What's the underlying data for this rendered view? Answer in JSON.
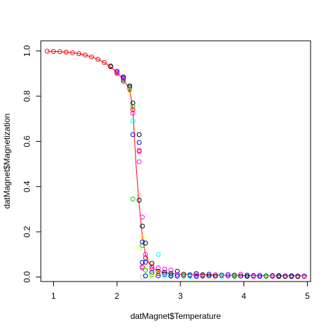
{
  "chart_data": {
    "type": "scatter",
    "xlabel": "datMagnet$Temperature",
    "ylabel": "datMagnet$Magnetization",
    "xlim": [
      0.8,
      5.05
    ],
    "ylim": [
      -0.02,
      1.045
    ],
    "x_ticks": [
      "1",
      "2",
      "3",
      "4",
      "5"
    ],
    "y_ticks": [
      "0.0",
      "0.2",
      "0.4",
      "0.6",
      "0.8",
      "1.0"
    ],
    "grid": false,
    "legend": "none",
    "colors": [
      "#000000",
      "#ff0000",
      "#00cd00",
      "#0000ff",
      "#00ffff",
      "#ff00ff",
      "#ffff00",
      "#bebebe"
    ],
    "curve_color": "#ff0000",
    "temperature": [
      0.9,
      1.0,
      1.1,
      1.2,
      1.3,
      1.4,
      1.5,
      1.6,
      1.7,
      1.8,
      1.9,
      2.0,
      2.1,
      2.2,
      2.25,
      2.3,
      2.35,
      2.4,
      2.45,
      2.5,
      2.55,
      2.6,
      2.65,
      2.7,
      2.75,
      2.8,
      2.9,
      3.0,
      3.1,
      3.2,
      3.3,
      3.4,
      3.5,
      3.6,
      3.7,
      3.8,
      3.9,
      4.0,
      4.1,
      4.2,
      4.3,
      4.4,
      4.5,
      4.6,
      4.7,
      4.8,
      4.9,
      5.0
    ],
    "mean_magnetization": [
      0.999,
      0.998,
      0.997,
      0.995,
      0.992,
      0.988,
      0.982,
      0.974,
      0.963,
      0.949,
      0.93,
      0.905,
      0.875,
      0.83,
      0.74,
      0.5,
      0.32,
      0.18,
      0.1,
      0.065,
      0.045,
      0.034,
      0.027,
      0.022,
      0.019,
      0.017,
      0.014,
      0.012,
      0.011,
      0.01,
      0.009,
      0.009,
      0.008,
      0.008,
      0.007,
      0.007,
      0.007,
      0.006,
      0.006,
      0.006,
      0.006,
      0.005,
      0.005,
      0.005,
      0.005,
      0.005,
      0.005,
      0.005
    ],
    "points": [
      [
        0.9,
        0.999,
        1
      ],
      [
        1.0,
        0.998,
        1
      ],
      [
        1.1,
        0.997,
        1
      ],
      [
        1.2,
        0.995,
        1
      ],
      [
        1.3,
        0.992,
        1
      ],
      [
        1.4,
        0.988,
        1
      ],
      [
        1.5,
        0.982,
        1
      ],
      [
        1.6,
        0.974,
        1
      ],
      [
        1.7,
        0.963,
        1
      ],
      [
        1.8,
        0.949,
        1
      ],
      [
        1.9,
        0.93,
        1
      ],
      [
        2.0,
        0.905,
        1
      ],
      [
        2.1,
        0.875,
        1
      ],
      [
        2.2,
        0.83,
        1
      ],
      [
        1.9,
        0.933,
        0
      ],
      [
        2.0,
        0.91,
        3
      ],
      [
        2.0,
        0.9,
        5
      ],
      [
        2.1,
        0.885,
        0
      ],
      [
        2.1,
        0.88,
        3
      ],
      [
        2.1,
        0.87,
        5
      ],
      [
        2.1,
        0.865,
        2
      ],
      [
        2.2,
        0.845,
        0
      ],
      [
        2.2,
        0.84,
        3
      ],
      [
        2.2,
        0.835,
        2
      ],
      [
        2.2,
        0.828,
        5
      ],
      [
        2.2,
        0.825,
        6
      ],
      [
        2.25,
        0.77,
        0
      ],
      [
        2.25,
        0.755,
        2
      ],
      [
        2.25,
        0.74,
        1
      ],
      [
        2.25,
        0.725,
        5
      ],
      [
        2.25,
        0.69,
        4
      ],
      [
        2.25,
        0.63,
        3
      ],
      [
        2.25,
        0.345,
        2
      ],
      [
        2.35,
        0.63,
        0
      ],
      [
        2.35,
        0.595,
        3
      ],
      [
        2.35,
        0.56,
        1
      ],
      [
        2.35,
        0.555,
        5
      ],
      [
        2.35,
        0.51,
        5
      ],
      [
        2.35,
        0.36,
        7
      ],
      [
        2.35,
        0.34,
        0
      ],
      [
        2.35,
        0.13,
        6
      ],
      [
        2.4,
        0.265,
        5
      ],
      [
        2.4,
        0.225,
        0
      ],
      [
        2.4,
        0.175,
        6
      ],
      [
        2.4,
        0.155,
        3
      ],
      [
        2.4,
        0.14,
        2
      ],
      [
        2.4,
        0.065,
        3
      ],
      [
        2.4,
        0.045,
        1
      ],
      [
        2.4,
        0.04,
        5
      ],
      [
        2.4,
        0.0,
        7
      ],
      [
        2.45,
        0.15,
        0
      ],
      [
        2.45,
        0.1,
        5
      ],
      [
        2.45,
        0.085,
        1
      ],
      [
        2.45,
        0.065,
        3
      ],
      [
        2.45,
        0.045,
        6
      ],
      [
        2.45,
        0.03,
        2
      ],
      [
        2.45,
        0.005,
        4
      ],
      [
        2.45,
        0.005,
        3
      ],
      [
        2.55,
        0.06,
        0
      ],
      [
        2.55,
        0.045,
        1
      ],
      [
        2.55,
        0.035,
        5
      ],
      [
        2.55,
        0.02,
        3
      ],
      [
        2.55,
        0.01,
        2
      ],
      [
        2.55,
        0.005,
        6
      ],
      [
        2.65,
        0.1,
        4
      ],
      [
        2.65,
        0.04,
        5
      ],
      [
        2.65,
        0.025,
        0
      ],
      [
        2.65,
        0.015,
        1
      ],
      [
        2.65,
        0.005,
        3
      ],
      [
        2.65,
        0.02,
        6
      ],
      [
        2.75,
        0.035,
        5
      ],
      [
        2.75,
        0.02,
        0
      ],
      [
        2.75,
        0.012,
        3
      ],
      [
        2.75,
        0.005,
        4
      ],
      [
        2.85,
        0.03,
        5
      ],
      [
        2.85,
        0.015,
        0
      ],
      [
        2.85,
        0.008,
        2
      ],
      [
        2.85,
        0.004,
        3
      ],
      [
        2.95,
        0.025,
        0
      ],
      [
        2.95,
        0.012,
        5
      ],
      [
        2.95,
        0.006,
        4
      ],
      [
        2.95,
        0.004,
        3
      ],
      [
        3.05,
        0.012,
        0
      ],
      [
        3.05,
        0.006,
        5
      ],
      [
        3.05,
        0.004,
        2
      ],
      [
        3.15,
        0.01,
        3
      ],
      [
        3.15,
        0.005,
        0
      ],
      [
        3.15,
        0.003,
        4
      ],
      [
        3.25,
        0.015,
        0
      ],
      [
        3.25,
        0.008,
        5
      ],
      [
        3.25,
        0.003,
        3
      ],
      [
        3.35,
        0.01,
        0
      ],
      [
        3.35,
        0.006,
        2
      ],
      [
        3.35,
        0.003,
        5
      ],
      [
        3.45,
        0.012,
        3
      ],
      [
        3.45,
        0.005,
        0
      ],
      [
        3.55,
        0.01,
        5
      ],
      [
        3.55,
        0.004,
        0
      ],
      [
        3.65,
        0.008,
        0
      ],
      [
        3.65,
        0.003,
        4
      ],
      [
        3.75,
        0.01,
        3
      ],
      [
        3.75,
        0.004,
        5
      ],
      [
        3.85,
        0.008,
        0
      ],
      [
        3.85,
        0.003,
        2
      ],
      [
        3.95,
        0.012,
        5
      ],
      [
        3.95,
        0.004,
        0
      ],
      [
        4.05,
        0.008,
        3
      ],
      [
        4.05,
        0.003,
        0
      ],
      [
        4.15,
        0.006,
        0
      ],
      [
        4.15,
        0.003,
        5
      ],
      [
        4.25,
        0.008,
        5
      ],
      [
        4.25,
        0.003,
        3
      ],
      [
        4.35,
        0.005,
        0
      ],
      [
        4.35,
        0.003,
        2
      ],
      [
        4.45,
        0.006,
        0
      ],
      [
        4.45,
        0.003,
        5
      ],
      [
        4.55,
        0.006,
        3
      ],
      [
        4.55,
        0.002,
        0
      ],
      [
        4.65,
        0.005,
        5
      ],
      [
        4.65,
        0.002,
        0
      ],
      [
        4.75,
        0.005,
        0
      ],
      [
        4.75,
        0.002,
        3
      ],
      [
        4.85,
        0.005,
        5
      ],
      [
        4.85,
        0.002,
        0
      ],
      [
        4.95,
        0.004,
        0
      ],
      [
        4.95,
        0.002,
        5
      ]
    ]
  }
}
